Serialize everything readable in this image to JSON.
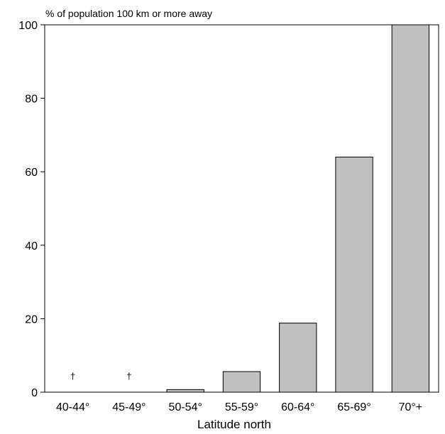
{
  "chart_data": {
    "type": "bar",
    "title": "",
    "ylabel": "% of population 100 km or more away",
    "xlabel": "Latitude north",
    "categories": [
      "40-44°",
      "45-49°",
      "50-54°",
      "55-59°",
      "60-64°",
      "65-69°",
      "70°+"
    ],
    "values": [
      0,
      0,
      0.7,
      5.6,
      18.8,
      64,
      100
    ],
    "annotations": [
      "†",
      "†",
      "",
      "",
      "",
      "",
      ""
    ],
    "ylim": [
      0,
      100
    ],
    "yticks": [
      "0",
      "20",
      "40",
      "60",
      "80",
      "100"
    ],
    "bar_color": "#c0c0c0",
    "bar_edge_color": "#000000",
    "grid": false
  }
}
